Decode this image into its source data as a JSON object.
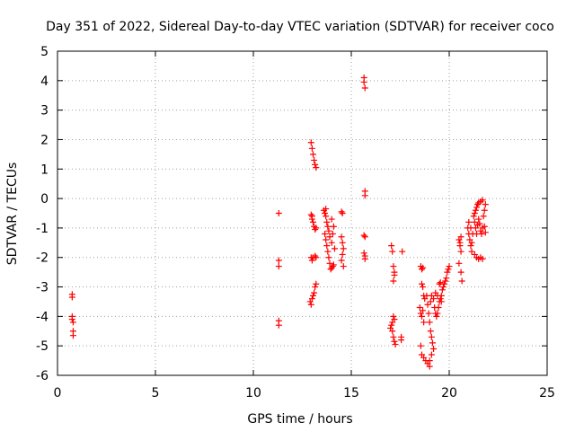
{
  "chart_data": {
    "type": "scatter",
    "title": "Day 351 of 2022, Sidereal Day-to-day VTEC variation (SDTVAR) for receiver coco",
    "xlabel": "GPS time / hours",
    "ylabel": "SDTVAR / TECUs",
    "xlim": [
      0,
      25
    ],
    "ylim": [
      -6,
      5
    ],
    "xticks": [
      "0",
      "5",
      "10",
      "15",
      "20",
      "25"
    ],
    "yticks": [
      "5",
      "4",
      "3",
      "2",
      "1",
      "0",
      "-1",
      "-2",
      "-3",
      "-4",
      "-5",
      "-6"
    ],
    "grid": true,
    "legend": "none",
    "marker": "plus",
    "color": "#ff0000",
    "points": [
      [
        0.75,
        -3.25
      ],
      [
        0.75,
        -3.35
      ],
      [
        0.75,
        -4.0
      ],
      [
        0.75,
        -4.1
      ],
      [
        0.8,
        -4.2
      ],
      [
        0.8,
        -4.5
      ],
      [
        0.8,
        -4.65
      ],
      [
        11.3,
        -0.5
      ],
      [
        11.3,
        -2.1
      ],
      [
        11.3,
        -2.3
      ],
      [
        11.3,
        -4.15
      ],
      [
        11.3,
        -4.3
      ],
      [
        12.95,
        1.9
      ],
      [
        13.0,
        1.7
      ],
      [
        13.05,
        1.5
      ],
      [
        13.1,
        1.3
      ],
      [
        13.15,
        1.15
      ],
      [
        13.2,
        1.05
      ],
      [
        12.95,
        -0.55
      ],
      [
        13.0,
        -0.7
      ],
      [
        13.05,
        -0.8
      ],
      [
        13.1,
        -0.95
      ],
      [
        13.15,
        -1.05
      ],
      [
        13.2,
        -1.0
      ],
      [
        13.0,
        -0.6
      ],
      [
        12.95,
        -2.0
      ],
      [
        13.0,
        -2.1
      ],
      [
        13.05,
        -2.0
      ],
      [
        13.15,
        -1.95
      ],
      [
        13.2,
        -2.0
      ],
      [
        12.9,
        -3.5
      ],
      [
        12.95,
        -3.6
      ],
      [
        13.0,
        -3.4
      ],
      [
        13.05,
        -3.3
      ],
      [
        13.1,
        -3.2
      ],
      [
        13.15,
        -3.0
      ],
      [
        13.2,
        -2.9
      ],
      [
        13.6,
        -0.4
      ],
      [
        13.65,
        -0.5
      ],
      [
        13.7,
        -0.6
      ],
      [
        13.75,
        -0.8
      ],
      [
        13.8,
        -0.95
      ],
      [
        13.85,
        -1.1
      ],
      [
        13.7,
        -0.35
      ],
      [
        13.65,
        -1.2
      ],
      [
        13.7,
        -1.4
      ],
      [
        13.75,
        -1.6
      ],
      [
        13.8,
        -1.8
      ],
      [
        13.85,
        -2.0
      ],
      [
        13.9,
        -2.2
      ],
      [
        13.95,
        -2.4
      ],
      [
        14.0,
        -2.35
      ],
      [
        14.05,
        -2.3
      ],
      [
        14.1,
        -2.25
      ],
      [
        13.9,
        -1.3
      ],
      [
        14.0,
        -1.5
      ],
      [
        14.05,
        -1.2
      ],
      [
        14.1,
        -0.95
      ],
      [
        14.15,
        -1.7
      ],
      [
        14.0,
        -0.7
      ],
      [
        14.5,
        -0.45
      ],
      [
        14.55,
        -0.5
      ],
      [
        14.5,
        -1.3
      ],
      [
        14.55,
        -1.5
      ],
      [
        14.6,
        -1.7
      ],
      [
        14.55,
        -1.9
      ],
      [
        14.5,
        -2.1
      ],
      [
        14.6,
        -2.3
      ],
      [
        15.65,
        4.1
      ],
      [
        15.65,
        3.95
      ],
      [
        15.7,
        3.75
      ],
      [
        15.7,
        0.25
      ],
      [
        15.7,
        0.1
      ],
      [
        15.65,
        -1.25
      ],
      [
        15.7,
        -1.3
      ],
      [
        15.65,
        -1.85
      ],
      [
        15.7,
        -1.95
      ],
      [
        15.7,
        -2.05
      ],
      [
        17.05,
        -1.6
      ],
      [
        17.1,
        -1.8
      ],
      [
        17.15,
        -2.3
      ],
      [
        17.2,
        -2.6
      ],
      [
        17.15,
        -2.8
      ],
      [
        17.2,
        -2.5
      ],
      [
        17.05,
        -4.3
      ],
      [
        17.1,
        -4.2
      ],
      [
        17.15,
        -4.0
      ],
      [
        17.2,
        -4.1
      ],
      [
        17.1,
        -4.5
      ],
      [
        17.15,
        -4.7
      ],
      [
        17.2,
        -4.85
      ],
      [
        17.25,
        -4.95
      ],
      [
        17.0,
        -4.4
      ],
      [
        17.55,
        -4.7
      ],
      [
        17.55,
        -4.8
      ],
      [
        17.6,
        -1.8
      ],
      [
        18.55,
        -2.3
      ],
      [
        18.6,
        -2.4
      ],
      [
        18.65,
        -2.35
      ],
      [
        18.6,
        -2.9
      ],
      [
        18.65,
        -3.0
      ],
      [
        18.7,
        -3.3
      ],
      [
        18.5,
        -3.7
      ],
      [
        18.55,
        -3.9
      ],
      [
        18.6,
        -4.0
      ],
      [
        18.65,
        -3.8
      ],
      [
        18.7,
        -4.2
      ],
      [
        18.55,
        -5.0
      ],
      [
        18.6,
        -5.3
      ],
      [
        18.7,
        -5.4
      ],
      [
        18.8,
        -5.5
      ],
      [
        18.9,
        -5.6
      ],
      [
        19.0,
        -5.7
      ],
      [
        19.0,
        -5.5
      ],
      [
        18.75,
        -3.4
      ],
      [
        18.85,
        -3.3
      ],
      [
        18.9,
        -3.6
      ],
      [
        18.95,
        -3.9
      ],
      [
        19.0,
        -4.2
      ],
      [
        19.05,
        -4.5
      ],
      [
        19.1,
        -4.7
      ],
      [
        19.15,
        -4.9
      ],
      [
        19.2,
        -5.1
      ],
      [
        19.1,
        -5.3
      ],
      [
        19.05,
        -3.5
      ],
      [
        19.1,
        -3.3
      ],
      [
        19.2,
        -3.4
      ],
      [
        19.25,
        -3.7
      ],
      [
        19.3,
        -3.9
      ],
      [
        19.35,
        -4.0
      ],
      [
        19.4,
        -3.9
      ],
      [
        19.45,
        -3.7
      ],
      [
        19.5,
        -3.5
      ],
      [
        19.55,
        -3.4
      ],
      [
        19.6,
        -3.3
      ],
      [
        19.65,
        -3.1
      ],
      [
        19.7,
        -3.0
      ],
      [
        19.75,
        -2.9
      ],
      [
        19.8,
        -2.8
      ],
      [
        19.85,
        -2.7
      ],
      [
        19.9,
        -2.5
      ],
      [
        19.95,
        -2.4
      ],
      [
        20.0,
        -2.3
      ],
      [
        19.5,
        -2.9
      ],
      [
        19.55,
        -2.85
      ],
      [
        19.6,
        -3.5
      ],
      [
        19.3,
        -3.2
      ],
      [
        19.4,
        -3.3
      ],
      [
        20.5,
        -1.4
      ],
      [
        20.55,
        -1.6
      ],
      [
        20.6,
        -1.8
      ],
      [
        20.5,
        -2.2
      ],
      [
        20.6,
        -2.5
      ],
      [
        20.65,
        -2.8
      ],
      [
        20.6,
        -1.3
      ],
      [
        20.55,
        -1.5
      ],
      [
        20.95,
        -1.0
      ],
      [
        21.0,
        -1.2
      ],
      [
        21.05,
        -1.4
      ],
      [
        21.1,
        -1.6
      ],
      [
        21.15,
        -1.8
      ],
      [
        21.0,
        -0.8
      ],
      [
        21.1,
        -1.0
      ],
      [
        21.2,
        -1.2
      ],
      [
        21.15,
        -1.5
      ],
      [
        21.25,
        -0.6
      ],
      [
        21.3,
        -0.5
      ],
      [
        21.35,
        -0.4
      ],
      [
        21.4,
        -0.3
      ],
      [
        21.45,
        -0.2
      ],
      [
        21.5,
        -0.15
      ],
      [
        21.6,
        -0.1
      ],
      [
        21.7,
        -0.05
      ],
      [
        21.3,
        -0.8
      ],
      [
        21.35,
        -1.0
      ],
      [
        21.4,
        -1.2
      ],
      [
        21.45,
        -0.9
      ],
      [
        21.5,
        -0.7
      ],
      [
        21.55,
        -0.85
      ],
      [
        21.6,
        -1.1
      ],
      [
        21.65,
        -1.2
      ],
      [
        21.7,
        -1.0
      ],
      [
        21.75,
        -0.6
      ],
      [
        21.8,
        -0.4
      ],
      [
        21.85,
        -0.2
      ],
      [
        21.8,
        -0.95
      ],
      [
        21.85,
        -1.15
      ],
      [
        21.3,
        -1.9
      ],
      [
        21.4,
        -2.0
      ],
      [
        21.5,
        -2.05
      ],
      [
        21.6,
        -2.0
      ],
      [
        21.7,
        -2.05
      ]
    ]
  }
}
